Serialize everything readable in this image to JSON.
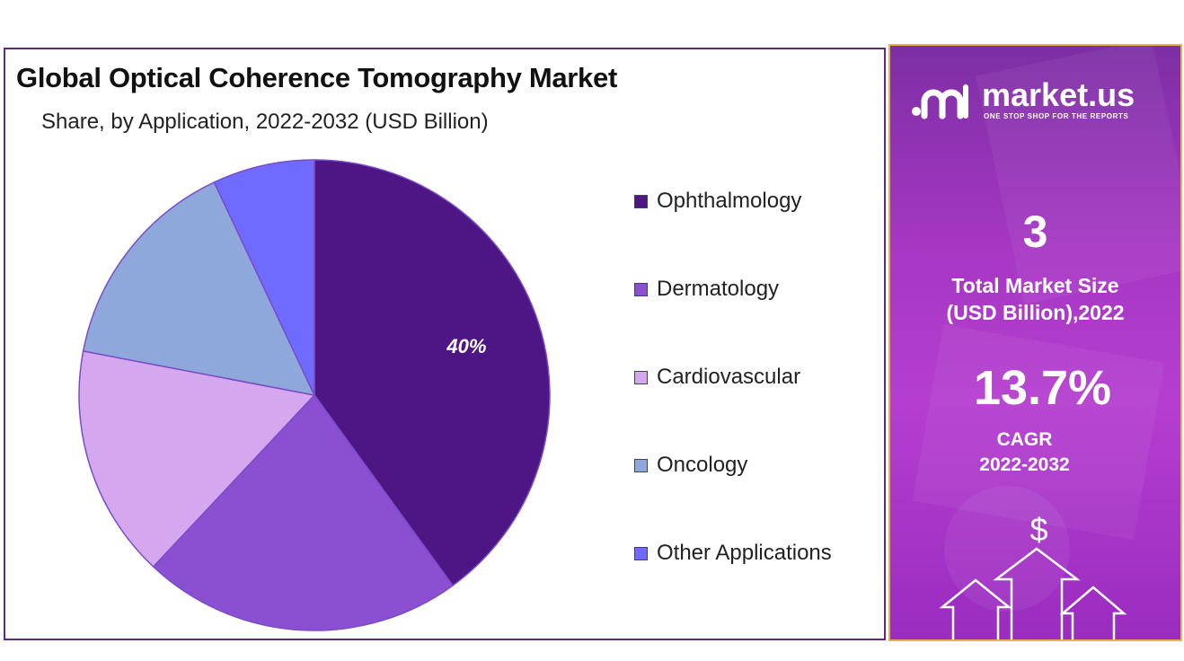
{
  "title": "Global Optical Coherence Tomography Market",
  "subtitle": "Share, by Application, 2022-2032 (USD Billion)",
  "chart_data": {
    "type": "pie",
    "start_angle_deg": 0,
    "direction": "clockwise",
    "slices": [
      {
        "label": "Ophthalmology",
        "value": 40,
        "data_label": "40%",
        "color": "#4e1684"
      },
      {
        "label": "Dermatology",
        "value": 22,
        "data_label": "",
        "color": "#8b4fd1"
      },
      {
        "label": "Cardiovascular",
        "value": 16,
        "data_label": "",
        "color": "#d5a7ef"
      },
      {
        "label": "Oncology",
        "value": 15,
        "data_label": "",
        "color": "#8ea8dc"
      },
      {
        "label": "Other Applications",
        "value": 7,
        "data_label": "",
        "color": "#6f6bff"
      }
    ],
    "legend_position": "right"
  },
  "side": {
    "logo_text": "market.us",
    "logo_tagline": "ONE STOP SHOP FOR THE REPORTS",
    "market_size": "3",
    "market_size_label_line1": "Total Market Size",
    "market_size_label_line2": "(USD Billion),2022",
    "cagr": "13.7%",
    "cagr_label": "CAGR",
    "cagr_period": "2022-2032",
    "currency_symbol": "$"
  }
}
